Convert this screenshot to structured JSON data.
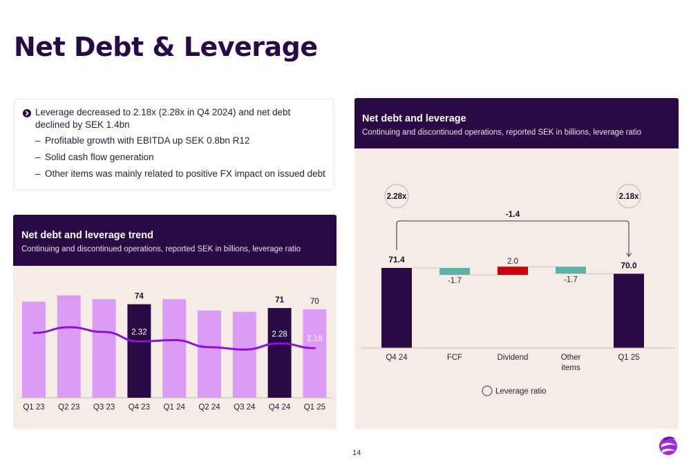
{
  "page": {
    "title": "Net Debt & Leverage",
    "page_number": "14"
  },
  "bullets": {
    "main": "Leverage decreased to 2.18x (2.28x in Q4 2024) and net debt declined by SEK 1.4bn",
    "subs": [
      "Profitable growth with EBITDA up SEK 0.8bn R12",
      "Solid cash flow generation",
      "Other items was mainly related to positive FX impact on issued debt"
    ],
    "dash": "–"
  },
  "colors": {
    "dark_purple": "#2a0a45",
    "light_purple": "#dc9cf5",
    "line_purple": "#8a12d8",
    "teal": "#5fb0a5",
    "red": "#c8000c",
    "panel_bg": "#f5ece6"
  },
  "chart_data": [
    {
      "type": "bar",
      "title": "Net debt and leverage trend",
      "subtitle": "Continuing and discontinued operations, reported SEK in billions, leverage ratio",
      "categories": [
        "Q1 23",
        "Q2 23",
        "Q3 23",
        "Q4 23",
        "Q1 24",
        "Q2 24",
        "Q3 24",
        "Q4 24",
        "Q1 25"
      ],
      "series": [
        {
          "values": [
            76,
            81,
            78,
            74,
            78,
            69,
            68,
            71,
            70
          ],
          "highlight": [
            false,
            false,
            false,
            true,
            false,
            false,
            false,
            true,
            false
          ]
        }
      ],
      "bar_labels": [
        "",
        "",
        "",
        "74",
        "",
        "",
        "",
        "71",
        "70"
      ],
      "line_series": {
        "values": [
          2.5,
          2.62,
          2.52,
          2.32,
          2.35,
          2.2,
          2.15,
          2.28,
          2.18
        ]
      },
      "line_labels": [
        "",
        "",
        "",
        "2.32",
        "",
        "",
        "",
        "2.28",
        "2.18"
      ],
      "ylim": [
        0,
        100
      ]
    },
    {
      "type": "waterfall",
      "title": "Net debt and leverage",
      "subtitle": "Continuing and discontinued operations, reported SEK in billions, leverage ratio",
      "categories": [
        "Q4 24",
        "FCF",
        "Dividend",
        "Other items",
        "Q1 25"
      ],
      "values": [
        71.4,
        -1.7,
        2.0,
        -1.7,
        70.0
      ],
      "value_labels": [
        "71.4",
        "-1.7",
        "2.0",
        "-1.7",
        "70.0"
      ],
      "kinds": [
        "total",
        "decrease",
        "increase",
        "decrease",
        "total"
      ],
      "leverage_start": "2.28x",
      "leverage_end": "2.18x",
      "change_label": "-1.4",
      "legend": "Leverage ratio"
    }
  ]
}
